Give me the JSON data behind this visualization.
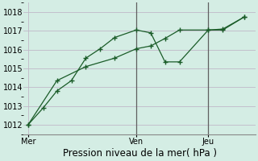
{
  "background_color": "#d4ede4",
  "grid_color": "#c0b8c8",
  "line_color": "#1a5c28",
  "vline_color": "#606060",
  "xlabel": "Pression niveau de la mer( hPa )",
  "ylim": [
    1011.5,
    1018.5
  ],
  "yticks": [
    1012,
    1013,
    1014,
    1015,
    1016,
    1017,
    1018
  ],
  "day_labels": [
    "Mer",
    "Ven",
    "Jeu"
  ],
  "day_positions": [
    0.0,
    0.5,
    0.833
  ],
  "vline_positions": [
    0.5,
    0.833
  ],
  "line1_x": [
    0.0,
    0.07,
    0.133,
    0.2,
    0.267,
    0.333,
    0.4,
    0.5,
    0.567,
    0.633,
    0.7,
    0.833,
    0.9,
    1.0
  ],
  "line1_y": [
    1012.0,
    1012.9,
    1013.8,
    1014.35,
    1015.55,
    1016.05,
    1016.65,
    1017.05,
    1016.9,
    1015.35,
    1015.35,
    1017.05,
    1017.05,
    1017.75
  ],
  "line2_x": [
    0.0,
    0.133,
    0.267,
    0.4,
    0.5,
    0.567,
    0.633,
    0.7,
    0.833,
    0.9,
    1.0
  ],
  "line2_y": [
    1012.0,
    1014.35,
    1015.1,
    1015.55,
    1016.05,
    1016.2,
    1016.6,
    1017.05,
    1017.05,
    1017.1,
    1017.75
  ],
  "xlabel_fontsize": 8.5,
  "tick_fontsize": 7,
  "ylabel_fontsize": 7
}
